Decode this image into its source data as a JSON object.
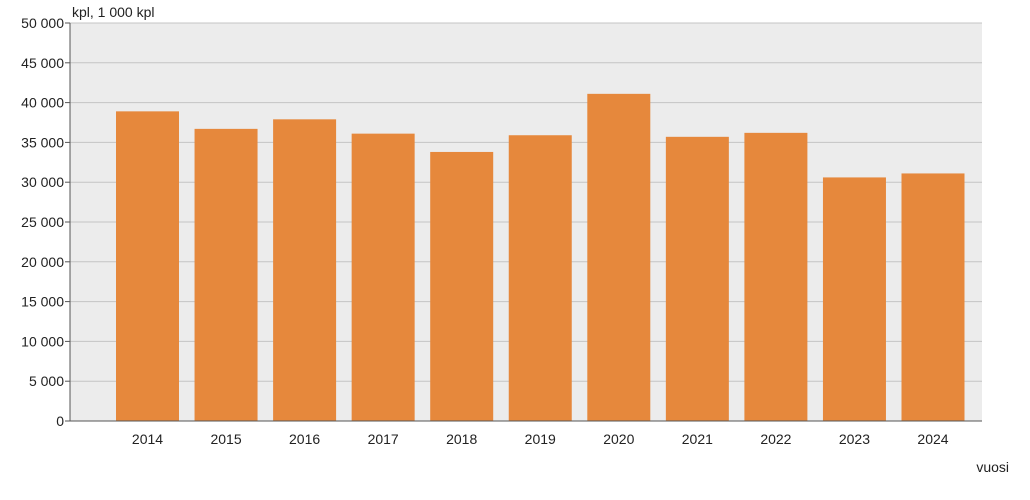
{
  "chart_data": {
    "type": "bar",
    "categories": [
      "2014",
      "2015",
      "2016",
      "2017",
      "2018",
      "2019",
      "2020",
      "2021",
      "2022",
      "2023",
      "2024"
    ],
    "values": [
      38900,
      36700,
      37900,
      36100,
      33800,
      35900,
      41100,
      35700,
      36200,
      30600,
      31100
    ],
    "ylabel": "kpl, 1 000 kpl",
    "xlabel": "vuosi",
    "ylim": [
      0,
      50000
    ],
    "yticks": [
      0,
      5000,
      10000,
      15000,
      20000,
      25000,
      30000,
      35000,
      40000,
      45000,
      50000
    ],
    "ytick_labels": [
      "0",
      "5 000",
      "10 000",
      "15 000",
      "20 000",
      "25 000",
      "30 000",
      "35 000",
      "40 000",
      "45 000",
      "50 000"
    ],
    "grid": true,
    "legend": "none",
    "colors": {
      "bar": "#e6883c",
      "plot_background": "#ececec",
      "gridline": "#c4c4c4",
      "axis": "#555555"
    }
  }
}
